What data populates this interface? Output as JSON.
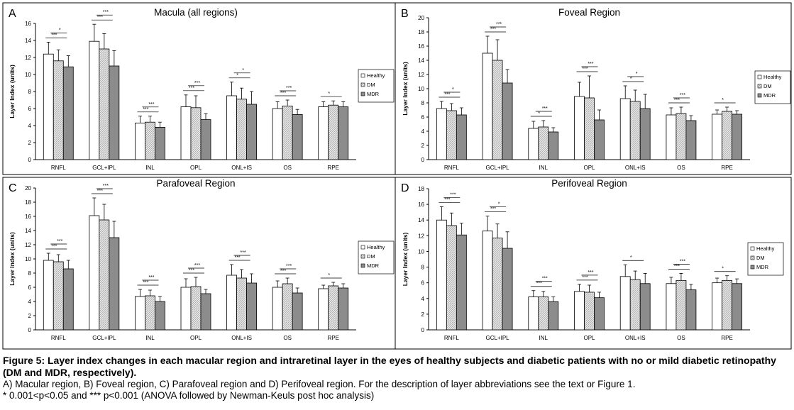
{
  "chart_data": [
    {
      "type": "bar",
      "panel_label": "A",
      "title": "Macula (all regions)",
      "ylabel": "Layer Index (units)",
      "ylim": [
        0,
        16
      ],
      "yticks": [
        0,
        2,
        4,
        6,
        8,
        10,
        12,
        14,
        16
      ],
      "categories": [
        "RNFL",
        "GCL+IPL",
        "INL",
        "OPL",
        "ONL+IS",
        "OS",
        "RPE"
      ],
      "series": [
        {
          "name": "Healthy",
          "values": [
            12.4,
            13.9,
            4.3,
            6.2,
            7.5,
            6.0,
            6.2
          ],
          "errors": [
            1.4,
            2.0,
            0.8,
            1.4,
            1.6,
            0.8,
            0.6
          ]
        },
        {
          "name": "DM",
          "values": [
            11.6,
            13.0,
            4.4,
            6.1,
            7.1,
            6.3,
            6.4
          ],
          "errors": [
            1.3,
            1.8,
            0.7,
            1.4,
            1.3,
            0.7,
            0.5
          ]
        },
        {
          "name": "MDR",
          "values": [
            10.9,
            11.0,
            3.8,
            4.7,
            6.5,
            5.3,
            6.2
          ],
          "errors": [
            1.3,
            1.8,
            0.6,
            0.7,
            1.5,
            0.6,
            0.6
          ]
        }
      ],
      "legend_position": "right",
      "significance": [
        {
          "category": "RNFL",
          "labels": [
            "***",
            "*"
          ]
        },
        {
          "category": "GCL+IPL",
          "labels": [
            "***",
            "***"
          ]
        },
        {
          "category": "INL",
          "labels": [
            "***",
            "***"
          ]
        },
        {
          "category": "OPL",
          "labels": [
            "***",
            "***"
          ]
        },
        {
          "category": "ONL+IS",
          "labels": [
            "*",
            "*"
          ]
        },
        {
          "category": "OS",
          "labels": [
            "***",
            "***"
          ]
        },
        {
          "category": "RPE",
          "labels": [
            "*"
          ]
        }
      ]
    },
    {
      "type": "bar",
      "panel_label": "B",
      "title": "Foveal Region",
      "ylabel": "Layer Index (units)",
      "ylim": [
        0,
        20
      ],
      "yticks": [
        0,
        2,
        4,
        6,
        8,
        10,
        12,
        14,
        16,
        18,
        20
      ],
      "categories": [
        "RNFL",
        "GCL+IPL",
        "INL",
        "OPL",
        "ONL+IS",
        "OS",
        "RPE"
      ],
      "series": [
        {
          "name": "Healthy",
          "values": [
            7.2,
            15.0,
            4.4,
            8.9,
            8.6,
            6.3,
            6.4
          ],
          "errors": [
            1.0,
            2.4,
            1.0,
            2.0,
            1.8,
            1.0,
            0.6
          ]
        },
        {
          "name": "DM",
          "values": [
            6.9,
            14.0,
            4.6,
            8.7,
            8.2,
            6.5,
            6.8
          ],
          "errors": [
            1.0,
            2.9,
            0.9,
            3.1,
            1.6,
            0.9,
            0.6
          ]
        },
        {
          "name": "MDR",
          "values": [
            6.3,
            10.8,
            3.9,
            5.6,
            7.2,
            5.5,
            6.4
          ],
          "errors": [
            1.0,
            1.9,
            0.6,
            1.4,
            2.0,
            0.7,
            0.5
          ]
        }
      ],
      "legend_position": "right",
      "significance": [
        {
          "category": "RNFL",
          "labels": [
            "***",
            "*"
          ]
        },
        {
          "category": "GCL+IPL",
          "labels": [
            "***",
            "***"
          ]
        },
        {
          "category": "INL",
          "labels": [
            "*",
            "***"
          ]
        },
        {
          "category": "OPL",
          "labels": [
            "***",
            "***"
          ]
        },
        {
          "category": "ONL+IS",
          "labels": [
            "*",
            "*"
          ]
        },
        {
          "category": "OS",
          "labels": [
            "***",
            "***"
          ]
        },
        {
          "category": "RPE",
          "labels": [
            "*"
          ]
        }
      ]
    },
    {
      "type": "bar",
      "panel_label": "C",
      "title": "Parafoveal Region",
      "ylabel": "Layer Index (units)",
      "ylim": [
        0,
        20
      ],
      "yticks": [
        0,
        2,
        4,
        6,
        8,
        10,
        12,
        14,
        16,
        18,
        20
      ],
      "categories": [
        "RNFL",
        "GCL+IPL",
        "INL",
        "OPL",
        "ONL+IS",
        "OS",
        "RPE"
      ],
      "series": [
        {
          "name": "Healthy",
          "values": [
            9.8,
            16.1,
            4.7,
            6.0,
            7.7,
            6.0,
            5.8
          ],
          "errors": [
            1.0,
            2.5,
            1.0,
            1.2,
            1.5,
            0.9,
            0.5
          ]
        },
        {
          "name": "DM",
          "values": [
            9.6,
            15.5,
            4.8,
            6.1,
            7.3,
            6.5,
            6.2
          ],
          "errors": [
            1.0,
            2.2,
            0.8,
            1.3,
            1.2,
            0.8,
            0.5
          ]
        },
        {
          "name": "MDR",
          "values": [
            8.6,
            13.0,
            4.0,
            5.1,
            6.6,
            5.2,
            5.9
          ],
          "errors": [
            1.2,
            2.3,
            0.7,
            0.6,
            1.3,
            0.7,
            0.6
          ]
        }
      ],
      "legend_position": "right",
      "significance": [
        {
          "category": "RNFL",
          "labels": [
            "***",
            "***"
          ]
        },
        {
          "category": "GCL+IPL",
          "labels": [
            "***",
            "***"
          ]
        },
        {
          "category": "INL",
          "labels": [
            "***",
            "***"
          ]
        },
        {
          "category": "OPL",
          "labels": [
            "***",
            "***"
          ]
        },
        {
          "category": "ONL+IS",
          "labels": [
            "***",
            "***"
          ]
        },
        {
          "category": "OS",
          "labels": [
            "***",
            "***"
          ]
        },
        {
          "category": "RPE",
          "labels": [
            "*"
          ]
        }
      ]
    },
    {
      "type": "bar",
      "panel_label": "D",
      "title": "Perifoveal Region",
      "ylabel": "Layer Index (units)",
      "ylim": [
        0,
        18
      ],
      "yticks": [
        0,
        2,
        4,
        6,
        8,
        10,
        12,
        14,
        16,
        18
      ],
      "categories": [
        "RNFL",
        "GCL+IPL",
        "INL",
        "OPL",
        "ONL+IS",
        "OS",
        "RPE"
      ],
      "series": [
        {
          "name": "Healthy",
          "values": [
            14.0,
            12.6,
            4.2,
            4.9,
            6.8,
            5.9,
            6.0
          ],
          "errors": [
            1.7,
            1.9,
            0.8,
            0.9,
            1.5,
            0.8,
            0.6
          ]
        },
        {
          "name": "DM",
          "values": [
            13.3,
            11.7,
            4.2,
            4.8,
            6.4,
            6.3,
            6.3
          ],
          "errors": [
            1.6,
            1.8,
            0.7,
            0.9,
            1.1,
            0.9,
            0.6
          ]
        },
        {
          "name": "MDR",
          "values": [
            12.1,
            10.4,
            3.6,
            4.1,
            5.9,
            5.1,
            5.9
          ],
          "errors": [
            1.5,
            2.1,
            0.6,
            0.7,
            1.3,
            0.7,
            0.6
          ]
        }
      ],
      "legend_position": "right",
      "significance": [
        {
          "category": "RNFL",
          "labels": [
            "***",
            "***"
          ]
        },
        {
          "category": "GCL+IPL",
          "labels": [
            "***",
            "*"
          ]
        },
        {
          "category": "INL",
          "labels": [
            "***",
            "***"
          ]
        },
        {
          "category": "OPL",
          "labels": [
            "***",
            "***"
          ]
        },
        {
          "category": "ONL+IS",
          "labels": [
            "*"
          ]
        },
        {
          "category": "OS",
          "labels": [
            "***",
            "***"
          ]
        },
        {
          "category": "RPE",
          "labels": [
            "*"
          ]
        }
      ]
    }
  ],
  "caption": {
    "title": "Figure 5: Layer index changes in each macular region and intraretinal layer in the eyes of healthy subjects and diabetic patients with no or mild diabetic retinopathy (DM and MDR, respectively).",
    "line1": "A) Macular region, B) Foveal region, C) Parafoveal region and D) Perifoveal region. For the description of layer abbreviations see the text or Figure 1.",
    "line2": "* 0.001<p<0.05 and *** p<0.001 (ANOVA followed by Newman-Keuls post hoc analysis)"
  },
  "colors": {
    "healthy_fill": "#ffffff",
    "dm_fill": "#dcdcdc",
    "mdr_fill": "#8c8c8c",
    "axis": "#000000"
  }
}
